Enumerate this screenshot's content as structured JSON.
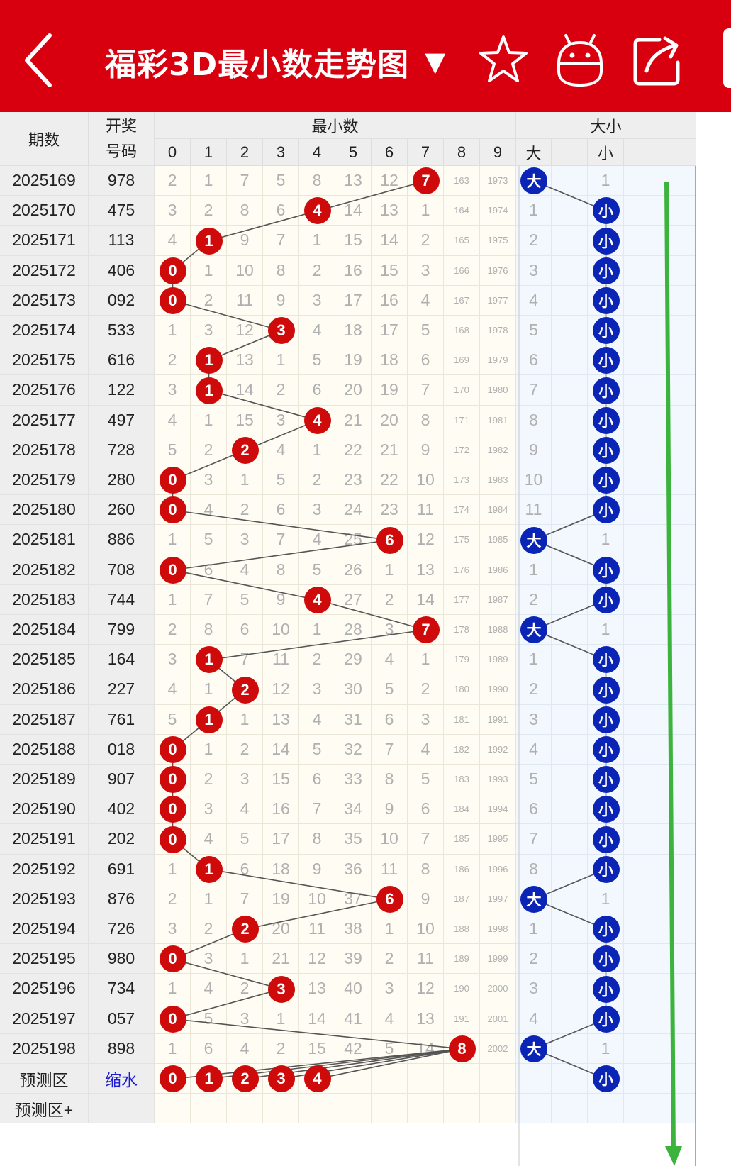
{
  "header": {
    "title": "福彩3D最小数走势图",
    "title_caret": "▼",
    "icons": [
      "back-arrow-icon",
      "star-icon",
      "robot-icon",
      "share-icon"
    ],
    "bg_color": "#d8000f"
  },
  "columns": {
    "period_label": "期数",
    "draw_label_line1": "开奖",
    "draw_label_line2": "号码",
    "min_group_label": "最小数",
    "min_digits": [
      "0",
      "1",
      "2",
      "3",
      "4",
      "5",
      "6",
      "7",
      "8",
      "9"
    ],
    "size_group_label": "大小",
    "size_big": "大",
    "size_mid": "",
    "size_small": "小"
  },
  "rows": [
    {
      "period": "2025169",
      "draw": "978",
      "min": 7,
      "miss": [
        "2",
        "1",
        "7",
        "5",
        "8",
        "13",
        "12",
        "7",
        "163",
        "1973"
      ],
      "size": "大",
      "size_miss": [
        "大",
        "",
        "1"
      ]
    },
    {
      "period": "2025170",
      "draw": "475",
      "min": 4,
      "miss": [
        "3",
        "2",
        "8",
        "6",
        "4",
        "14",
        "13",
        "1",
        "164",
        "1974"
      ],
      "size": "小",
      "size_miss": [
        "1",
        "",
        "小"
      ]
    },
    {
      "period": "2025171",
      "draw": "113",
      "min": 1,
      "miss": [
        "4",
        "1",
        "9",
        "7",
        "1",
        "15",
        "14",
        "2",
        "165",
        "1975"
      ],
      "size": "小",
      "size_miss": [
        "2",
        "",
        "小"
      ]
    },
    {
      "period": "2025172",
      "draw": "406",
      "min": 0,
      "miss": [
        "0",
        "1",
        "10",
        "8",
        "2",
        "16",
        "15",
        "3",
        "166",
        "1976"
      ],
      "size": "小",
      "size_miss": [
        "3",
        "",
        "小"
      ]
    },
    {
      "period": "2025173",
      "draw": "092",
      "min": 0,
      "miss": [
        "0",
        "2",
        "11",
        "9",
        "3",
        "17",
        "16",
        "4",
        "167",
        "1977"
      ],
      "size": "小",
      "size_miss": [
        "4",
        "",
        "小"
      ]
    },
    {
      "period": "2025174",
      "draw": "533",
      "min": 3,
      "miss": [
        "1",
        "3",
        "12",
        "3",
        "4",
        "18",
        "17",
        "5",
        "168",
        "1978"
      ],
      "size": "小",
      "size_miss": [
        "5",
        "",
        "小"
      ]
    },
    {
      "period": "2025175",
      "draw": "616",
      "min": 1,
      "miss": [
        "2",
        "1",
        "13",
        "1",
        "5",
        "19",
        "18",
        "6",
        "169",
        "1979"
      ],
      "size": "小",
      "size_miss": [
        "6",
        "",
        "小"
      ]
    },
    {
      "period": "2025176",
      "draw": "122",
      "min": 1,
      "miss": [
        "3",
        "1",
        "14",
        "2",
        "6",
        "20",
        "19",
        "7",
        "170",
        "1980"
      ],
      "size": "小",
      "size_miss": [
        "7",
        "",
        "小"
      ]
    },
    {
      "period": "2025177",
      "draw": "497",
      "min": 4,
      "miss": [
        "4",
        "1",
        "15",
        "3",
        "4",
        "21",
        "20",
        "8",
        "171",
        "1981"
      ],
      "size": "小",
      "size_miss": [
        "8",
        "",
        "小"
      ]
    },
    {
      "period": "2025178",
      "draw": "728",
      "min": 2,
      "miss": [
        "5",
        "2",
        "2",
        "4",
        "1",
        "22",
        "21",
        "9",
        "172",
        "1982"
      ],
      "size": "小",
      "size_miss": [
        "9",
        "",
        "小"
      ]
    },
    {
      "period": "2025179",
      "draw": "280",
      "min": 0,
      "miss": [
        "0",
        "3",
        "1",
        "5",
        "2",
        "23",
        "22",
        "10",
        "173",
        "1983"
      ],
      "size": "小",
      "size_miss": [
        "10",
        "",
        "小"
      ]
    },
    {
      "period": "2025180",
      "draw": "260",
      "min": 0,
      "miss": [
        "0",
        "4",
        "2",
        "6",
        "3",
        "24",
        "23",
        "11",
        "174",
        "1984"
      ],
      "size": "小",
      "size_miss": [
        "11",
        "",
        "小"
      ]
    },
    {
      "period": "2025181",
      "draw": "886",
      "min": 6,
      "miss": [
        "1",
        "5",
        "3",
        "7",
        "4",
        "25",
        "6",
        "12",
        "175",
        "1985"
      ],
      "size": "大",
      "size_miss": [
        "大",
        "",
        "1"
      ]
    },
    {
      "period": "2025182",
      "draw": "708",
      "min": 0,
      "miss": [
        "0",
        "6",
        "4",
        "8",
        "5",
        "26",
        "1",
        "13",
        "176",
        "1986"
      ],
      "size": "小",
      "size_miss": [
        "1",
        "",
        "小"
      ]
    },
    {
      "period": "2025183",
      "draw": "744",
      "min": 4,
      "miss": [
        "1",
        "7",
        "5",
        "9",
        "4",
        "27",
        "2",
        "14",
        "177",
        "1987"
      ],
      "size": "小",
      "size_miss": [
        "2",
        "",
        "小"
      ]
    },
    {
      "period": "2025184",
      "draw": "799",
      "min": 7,
      "miss": [
        "2",
        "8",
        "6",
        "10",
        "1",
        "28",
        "3",
        "7",
        "178",
        "1988"
      ],
      "size": "大",
      "size_miss": [
        "大",
        "",
        "1"
      ]
    },
    {
      "period": "2025185",
      "draw": "164",
      "min": 1,
      "miss": [
        "3",
        "1",
        "7",
        "11",
        "2",
        "29",
        "4",
        "1",
        "179",
        "1989"
      ],
      "size": "小",
      "size_miss": [
        "1",
        "",
        "小"
      ]
    },
    {
      "period": "2025186",
      "draw": "227",
      "min": 2,
      "miss": [
        "4",
        "1",
        "2",
        "12",
        "3",
        "30",
        "5",
        "2",
        "180",
        "1990"
      ],
      "size": "小",
      "size_miss": [
        "2",
        "",
        "小"
      ]
    },
    {
      "period": "2025187",
      "draw": "761",
      "min": 1,
      "miss": [
        "5",
        "1",
        "1",
        "13",
        "4",
        "31",
        "6",
        "3",
        "181",
        "1991"
      ],
      "size": "小",
      "size_miss": [
        "3",
        "",
        "小"
      ]
    },
    {
      "period": "2025188",
      "draw": "018",
      "min": 0,
      "miss": [
        "0",
        "1",
        "2",
        "14",
        "5",
        "32",
        "7",
        "4",
        "182",
        "1992"
      ],
      "size": "小",
      "size_miss": [
        "4",
        "",
        "小"
      ]
    },
    {
      "period": "2025189",
      "draw": "907",
      "min": 0,
      "miss": [
        "0",
        "2",
        "3",
        "15",
        "6",
        "33",
        "8",
        "5",
        "183",
        "1993"
      ],
      "size": "小",
      "size_miss": [
        "5",
        "",
        "小"
      ]
    },
    {
      "period": "2025190",
      "draw": "402",
      "min": 0,
      "miss": [
        "0",
        "3",
        "4",
        "16",
        "7",
        "34",
        "9",
        "6",
        "184",
        "1994"
      ],
      "size": "小",
      "size_miss": [
        "6",
        "",
        "小"
      ]
    },
    {
      "period": "2025191",
      "draw": "202",
      "min": 0,
      "miss": [
        "0",
        "4",
        "5",
        "17",
        "8",
        "35",
        "10",
        "7",
        "185",
        "1995"
      ],
      "size": "小",
      "size_miss": [
        "7",
        "",
        "小"
      ]
    },
    {
      "period": "2025192",
      "draw": "691",
      "min": 1,
      "miss": [
        "1",
        "1",
        "6",
        "18",
        "9",
        "36",
        "11",
        "8",
        "186",
        "1996"
      ],
      "size": "小",
      "size_miss": [
        "8",
        "",
        "小"
      ]
    },
    {
      "period": "2025193",
      "draw": "876",
      "min": 6,
      "miss": [
        "2",
        "1",
        "7",
        "19",
        "10",
        "37",
        "6",
        "9",
        "187",
        "1997"
      ],
      "size": "大",
      "size_miss": [
        "大",
        "",
        "1"
      ]
    },
    {
      "period": "2025194",
      "draw": "726",
      "min": 2,
      "miss": [
        "3",
        "2",
        "2",
        "20",
        "11",
        "38",
        "1",
        "10",
        "188",
        "1998"
      ],
      "size": "小",
      "size_miss": [
        "1",
        "",
        "小"
      ]
    },
    {
      "period": "2025195",
      "draw": "980",
      "min": 0,
      "miss": [
        "0",
        "3",
        "1",
        "21",
        "12",
        "39",
        "2",
        "11",
        "189",
        "1999"
      ],
      "size": "小",
      "size_miss": [
        "2",
        "",
        "小"
      ]
    },
    {
      "period": "2025196",
      "draw": "734",
      "min": 3,
      "miss": [
        "1",
        "4",
        "2",
        "3",
        "13",
        "40",
        "3",
        "12",
        "190",
        "2000"
      ],
      "size": "小",
      "size_miss": [
        "3",
        "",
        "小"
      ]
    },
    {
      "period": "2025197",
      "draw": "057",
      "min": 0,
      "miss": [
        "0",
        "5",
        "3",
        "1",
        "14",
        "41",
        "4",
        "13",
        "191",
        "2001"
      ],
      "size": "小",
      "size_miss": [
        "4",
        "",
        "小"
      ]
    },
    {
      "period": "2025198",
      "draw": "898",
      "min": 8,
      "miss": [
        "1",
        "6",
        "4",
        "2",
        "15",
        "42",
        "5",
        "14",
        "8",
        "2002"
      ],
      "size": "大",
      "size_miss": [
        "大",
        "",
        "1"
      ]
    }
  ],
  "predict_row": {
    "label": "预测区",
    "action": "缩水",
    "balls": [
      "0",
      "1",
      "2",
      "3",
      "4"
    ],
    "size": "小"
  },
  "predict_plus_row": {
    "label": "预测区+"
  },
  "colors": {
    "red_ball": "#cf0a0a",
    "blue_ball": "#0a24b6",
    "scroll_arrow": "#3cb33c"
  }
}
